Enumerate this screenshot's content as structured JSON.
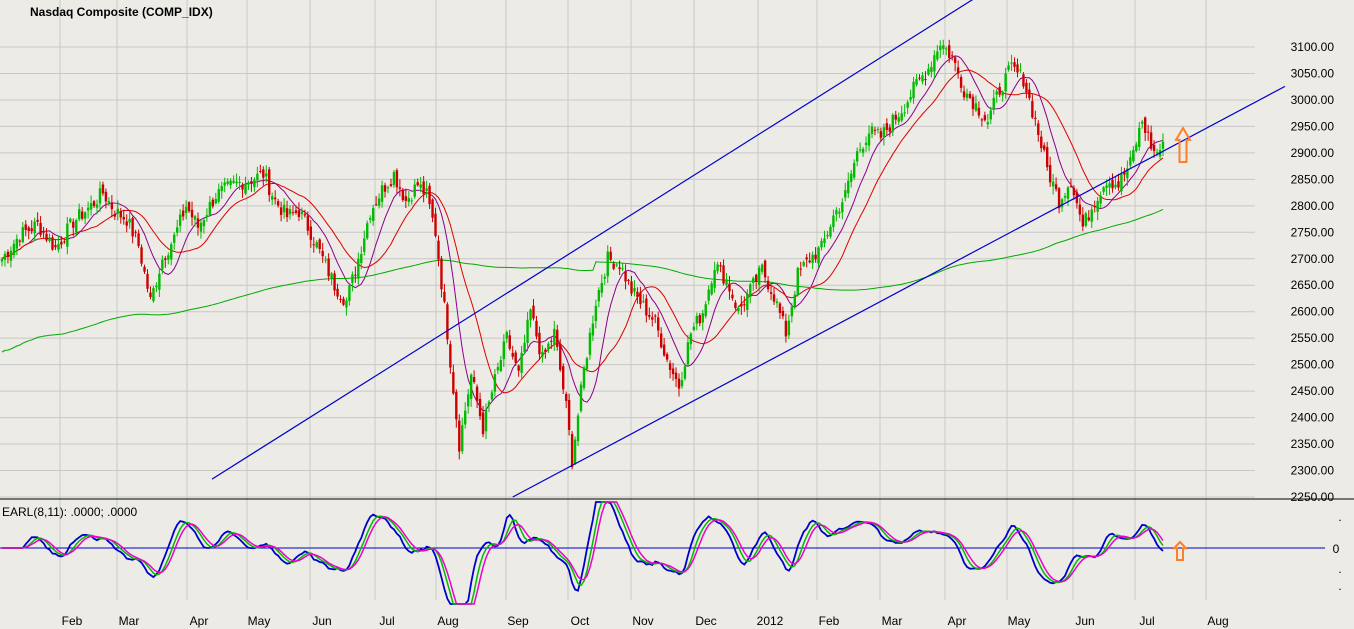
{
  "chart_data": {
    "type": "candlestick",
    "title": "Nasdaq Composite (COMP_IDX)",
    "price_axis": {
      "ylim": [
        2250,
        3140
      ],
      "ticks": [
        2250,
        2300,
        2350,
        2400,
        2450,
        2500,
        2550,
        2600,
        2650,
        2700,
        2750,
        2800,
        2850,
        2900,
        2950,
        3000,
        3050,
        3100
      ],
      "tick_labels": [
        "2250.00",
        "2300.00",
        "2350.00",
        "2400.00",
        "2450.00",
        "2500.00",
        "2550.00",
        "2600.00",
        "2650.00",
        "2700.00",
        "2750.00",
        "2800.00",
        "2850.00",
        "2900.00",
        "2950.00",
        "3000.00",
        "3050.00",
        "3100.00"
      ]
    },
    "x_labels": [
      "Feb",
      "Mar",
      "Apr",
      "May",
      "Jun",
      "Jul",
      "Aug",
      "Sep",
      "Oct",
      "Nov",
      "Dec",
      "2012",
      "Feb",
      "Mar",
      "Apr",
      "May",
      "Jun",
      "Jul",
      "Aug"
    ],
    "close_path": [
      [
        0,
        2700
      ],
      [
        6,
        2745
      ],
      [
        12,
        2765
      ],
      [
        18,
        2720
      ],
      [
        24,
        2770
      ],
      [
        30,
        2800
      ],
      [
        34,
        2825
      ],
      [
        38,
        2790
      ],
      [
        42,
        2775
      ],
      [
        46,
        2725
      ],
      [
        50,
        2620
      ],
      [
        54,
        2700
      ],
      [
        58,
        2740
      ],
      [
        62,
        2800
      ],
      [
        66,
        2760
      ],
      [
        72,
        2820
      ],
      [
        78,
        2840
      ],
      [
        84,
        2850
      ],
      [
        88,
        2860
      ],
      [
        92,
        2810
      ],
      [
        96,
        2780
      ],
      [
        100,
        2790
      ],
      [
        104,
        2750
      ],
      [
        108,
        2700
      ],
      [
        112,
        2650
      ],
      [
        116,
        2620
      ],
      [
        120,
        2700
      ],
      [
        124,
        2790
      ],
      [
        128,
        2830
      ],
      [
        132,
        2860
      ],
      [
        136,
        2810
      ],
      [
        140,
        2840
      ],
      [
        143,
        2820
      ],
      [
        146,
        2750
      ],
      [
        150,
        2560
      ],
      [
        154,
        2350
      ],
      [
        158,
        2480
      ],
      [
        162,
        2380
      ],
      [
        166,
        2470
      ],
      [
        170,
        2550
      ],
      [
        174,
        2480
      ],
      [
        178,
        2600
      ],
      [
        182,
        2510
      ],
      [
        186,
        2560
      ],
      [
        190,
        2420
      ],
      [
        192,
        2320
      ],
      [
        196,
        2490
      ],
      [
        200,
        2620
      ],
      [
        204,
        2700
      ],
      [
        208,
        2690
      ],
      [
        212,
        2640
      ],
      [
        216,
        2610
      ],
      [
        220,
        2580
      ],
      [
        224,
        2510
      ],
      [
        228,
        2460
      ],
      [
        232,
        2560
      ],
      [
        236,
        2600
      ],
      [
        240,
        2690
      ],
      [
        244,
        2660
      ],
      [
        248,
        2600
      ],
      [
        252,
        2640
      ],
      [
        256,
        2680
      ],
      [
        260,
        2630
      ],
      [
        264,
        2560
      ],
      [
        268,
        2670
      ],
      [
        272,
        2700
      ],
      [
        276,
        2720
      ],
      [
        280,
        2780
      ],
      [
        284,
        2820
      ],
      [
        288,
        2900
      ],
      [
        292,
        2940
      ],
      [
        296,
        2930
      ],
      [
        300,
        2960
      ],
      [
        304,
        2990
      ],
      [
        308,
        3030
      ],
      [
        312,
        3060
      ],
      [
        316,
        3110
      ],
      [
        320,
        3080
      ],
      [
        324,
        3020
      ],
      [
        328,
        2990
      ],
      [
        332,
        2960
      ],
      [
        336,
        3020
      ],
      [
        340,
        3060
      ],
      [
        344,
        3040
      ],
      [
        348,
        2960
      ],
      [
        352,
        2870
      ],
      [
        356,
        2810
      ],
      [
        360,
        2850
      ],
      [
        364,
        2760
      ],
      [
        368,
        2810
      ],
      [
        372,
        2850
      ],
      [
        376,
        2840
      ],
      [
        380,
        2880
      ],
      [
        384,
        2960
      ],
      [
        388,
        2900
      ],
      [
        391,
        2910
      ]
    ],
    "series": [
      {
        "name": "",
        "role": "fast moving average",
        "color": "#8b008b"
      },
      {
        "name": "",
        "role": "medium moving average",
        "color": "#dd0000"
      },
      {
        "name": "",
        "role": "long moving average",
        "color": "#00aa00"
      }
    ],
    "trend_channel": {
      "upper_line": [
        [
          146,
          2550
        ],
        [
          327,
          3190
        ]
      ],
      "lower_line": [
        [
          172,
          2250
        ],
        [
          395,
          2915
        ]
      ]
    },
    "annotations": [
      "up-arrow",
      "up-arrow"
    ],
    "indicator": {
      "label": "EARL(8,11): .0000; .0000",
      "zero_label": "0",
      "lines": [
        {
          "name": "",
          "color": "#0000cc"
        },
        {
          "name": "",
          "color": "#00bb00"
        },
        {
          "name": "",
          "color": "#ee00cc"
        }
      ]
    },
    "colors": {
      "up": "#00bb00",
      "down": "#cc0000",
      "channel": "#0000cc",
      "arrow": "#ff7f27",
      "grid": "#c8c8c8",
      "background": "#ecebe6"
    }
  }
}
